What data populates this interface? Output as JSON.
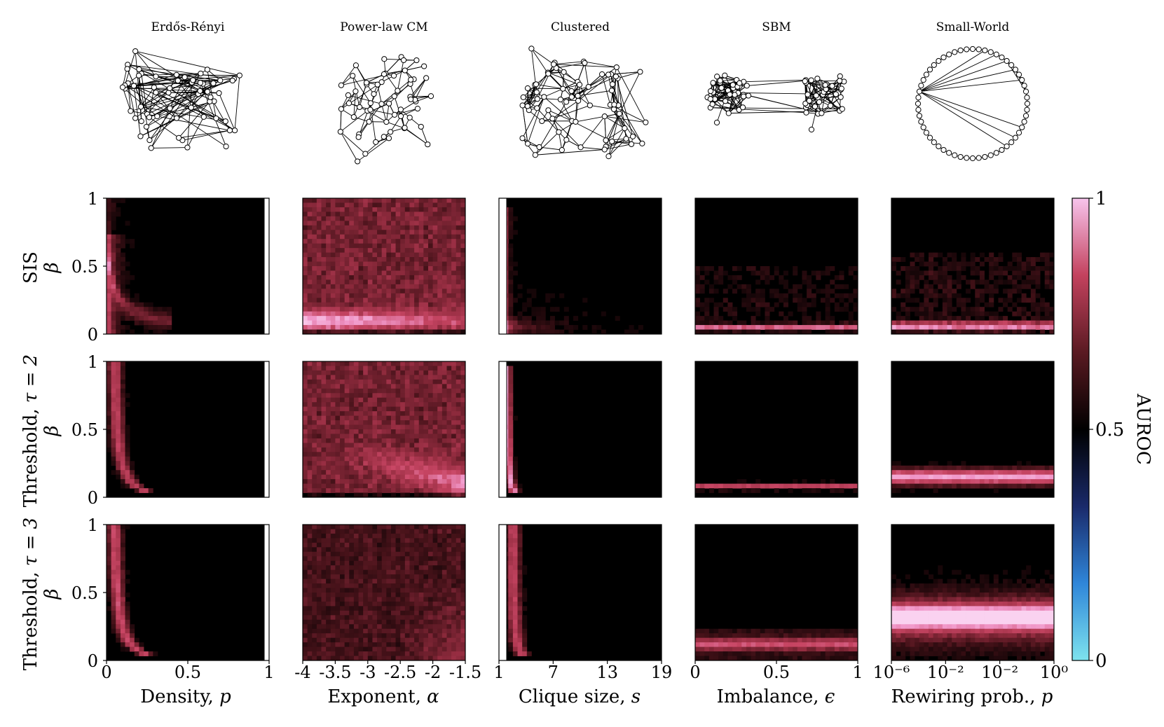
{
  "columns": [
    {
      "graph_title": "Erdős-Rényi",
      "xlabel": "Density, ",
      "xlabel_var": "p",
      "xticks": [
        "0",
        "0.5",
        "1"
      ]
    },
    {
      "graph_title": "Power-law CM",
      "xlabel": "Exponent, ",
      "xlabel_var": "α",
      "xticks": [
        "-4",
        "-3.5",
        "-3",
        "-2.5",
        "-2",
        "-1.5"
      ]
    },
    {
      "graph_title": "Clustered",
      "xlabel": "Clique size, ",
      "xlabel_var": "s",
      "xticks": [
        "1",
        "7",
        "13",
        "19"
      ]
    },
    {
      "graph_title": "SBM",
      "xlabel": "Imbalance, ",
      "xlabel_var": "ϵ",
      "xticks": [
        "0",
        "0.5",
        "1"
      ]
    },
    {
      "graph_title": "Small-World",
      "xlabel": "Rewiring prob., ",
      "xlabel_var": "p",
      "xticks": [
        "10⁻⁶",
        "10⁻²",
        "10⁻²",
        "10⁰"
      ]
    }
  ],
  "rows": [
    {
      "label": "SIS",
      "label_suffix": ""
    },
    {
      "label": "Threshold, ",
      "label_suffix": "τ = 2"
    },
    {
      "label": "Threshold, ",
      "label_suffix": "τ = 3"
    }
  ],
  "ylabel": "β",
  "yticks": [
    "0",
    "0.5",
    "1"
  ],
  "colorbar": {
    "label": "AUROC",
    "ticks": [
      "0",
      "0.5",
      "1"
    ],
    "range": [
      0,
      1
    ],
    "colors": [
      "#7ee3ee",
      "#2f86d9",
      "#1a2a6a",
      "#000000",
      "#5a1a22",
      "#c3425e",
      "#f7c4ec"
    ]
  },
  "chart_data": {
    "type": "heatmap",
    "title": "",
    "value_label": "AUROC",
    "value_range": [
      0,
      1
    ],
    "ylabel": "β",
    "ylim": [
      0,
      1
    ],
    "panels": [
      {
        "row": "SIS",
        "column": "Erdős-Rényi",
        "xlim": [
          0,
          1
        ],
        "pattern": "high AUROC only at very low density and small β (≈0.7-1); elsewhere ≈0.5"
      },
      {
        "row": "SIS",
        "column": "Power-law CM",
        "xlim": [
          -4,
          -1.5
        ],
        "pattern": "moderate AUROC (≈0.65-0.75) across most of panel, highest (≈0.9) near β≈0.05-0.15 at α -4 to -2"
      },
      {
        "row": "SIS",
        "column": "Clustered",
        "xlim": [
          1,
          19
        ],
        "pattern": "high AUROC (≈0.9) in narrow band at s≈2, decaying with s; bottom band at β≈0.05"
      },
      {
        "row": "SIS",
        "column": "SBM",
        "xlim": [
          0,
          1
        ],
        "pattern": "thin band AUROC≈0.75 at β≈0.05; faint ≈0.55 up to β≈0.5"
      },
      {
        "row": "SIS",
        "column": "Small-World",
        "xlim": [
          "1e-6",
          "1e0"
        ],
        "pattern": "bright band AUROC≈0.85 at β≈0.05-0.1; faint ≈0.55 above"
      },
      {
        "row": "Threshold, τ=2",
        "column": "Erdős-Rényi",
        "xlim": [
          0,
          1
        ],
        "pattern": "AUROC≈0.75 band along low density, curving to β≈0.1"
      },
      {
        "row": "Threshold, τ=2",
        "column": "Power-law CM",
        "xlim": [
          -4,
          -1.5
        ],
        "pattern": "AUROC≈0.7 over most of panel, brightest ≈0.9 near β≈0.1-0.25 at α -2.5 to -1.5"
      },
      {
        "row": "Threshold, τ=2",
        "column": "Clustered",
        "xlim": [
          1,
          19
        ],
        "pattern": "high AUROC (≈0.9) narrow band at s≈2, β 0.1-0.5"
      },
      {
        "row": "Threshold, τ=2",
        "column": "SBM",
        "xlim": [
          0,
          1
        ],
        "pattern": "thin band AUROC≈0.75 at β≈0.08"
      },
      {
        "row": "Threshold, τ=2",
        "column": "Small-World",
        "xlim": [
          "1e-6",
          "1e0"
        ],
        "pattern": "bright band AUROC≈0.9 at β≈0.1-0.2"
      },
      {
        "row": "Threshold, τ=3",
        "column": "Erdős-Rényi",
        "xlim": [
          0,
          1
        ],
        "pattern": "AUROC≈0.75 band along low density, curving to β≈0.1"
      },
      {
        "row": "Threshold, τ=3",
        "column": "Power-law CM",
        "xlim": [
          -4,
          -1.5
        ],
        "pattern": "moderate AUROC≈0.6 across panel, ≈0.75 bottom-right"
      },
      {
        "row": "Threshold, τ=3",
        "column": "Clustered",
        "xlim": [
          1,
          19
        ],
        "pattern": "AUROC≈0.75 band at s≈3, curving toward larger s at β≈0.1"
      },
      {
        "row": "Threshold, τ=3",
        "column": "SBM",
        "xlim": [
          0,
          1
        ],
        "pattern": "band AUROC≈0.7 at β≈0.1, faint above"
      },
      {
        "row": "Threshold, τ=3",
        "column": "Small-World",
        "xlim": [
          "1e-6",
          "1e0"
        ],
        "pattern": "bright band AUROC≈0.9 at β≈0.25-0.35, reddish ≈0.7 for β 0.1-0.5"
      }
    ]
  }
}
